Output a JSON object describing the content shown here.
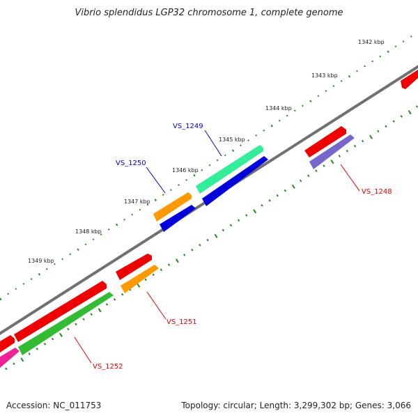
{
  "title": "Vibrio splendidus LGP32 chromosome 1, complete genome",
  "footer": {
    "accession": "Accession: NC_011753",
    "topology": "Topology: circular; Length: 3,299,302 bp; Genes: 3,066"
  },
  "kbp_ticks": [
    {
      "label": "1342 kbp"
    },
    {
      "label": "1343 kbp"
    },
    {
      "label": "1344 kbp"
    },
    {
      "label": "1345 kbp"
    },
    {
      "label": "1346 kbp"
    },
    {
      "label": "1347 kbp"
    },
    {
      "label": "1348 kbp"
    },
    {
      "label": "1349 kbp"
    }
  ],
  "genes": [
    {
      "name": "VS_1249",
      "color": "#0000cc"
    },
    {
      "name": "VS_1250",
      "color": "#0000cc"
    },
    {
      "name": "VS_1248",
      "color": "#dd0000"
    },
    {
      "name": "VS_1251",
      "color": "#dd0000"
    },
    {
      "name": "VS_1252",
      "color": "#dd0000"
    }
  ],
  "colors": {
    "backbone": "#707070",
    "red": "#ee0000",
    "green": "#33bb33",
    "orange": "#ff9900",
    "blue": "#0000dd",
    "teal": "#33ee99",
    "lavender": "#7766cc",
    "pink": "#ee2299",
    "tick": "#228822"
  }
}
